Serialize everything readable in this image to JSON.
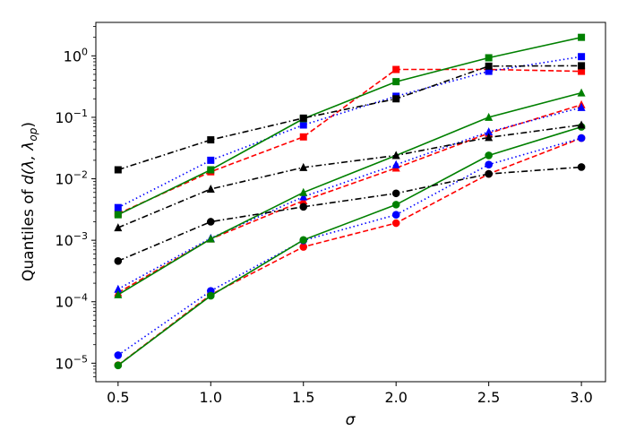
{
  "chart_data": {
    "type": "line",
    "xlabel": "σ",
    "ylabel_prefix": "Quantiles of ",
    "ylabel_math": "d(λ, λ",
    "ylabel_sub": "op",
    "ylabel_close": ")",
    "yscale": "log",
    "xlim": [
      0.38,
      3.13
    ],
    "ylim": [
      5e-06,
      3.5
    ],
    "x": [
      0.5,
      1.0,
      1.5,
      2.0,
      2.5,
      3.0
    ],
    "x_tick_labels": [
      "0.5",
      "1.0",
      "1.5",
      "2.0",
      "2.5",
      "3.0"
    ],
    "y_ticks": [
      {
        "value": 1e-05,
        "base": "10",
        "exp": "−5"
      },
      {
        "value": 0.0001,
        "base": "10",
        "exp": "−4"
      },
      {
        "value": 0.001,
        "base": "10",
        "exp": "−3"
      },
      {
        "value": 0.01,
        "base": "10",
        "exp": "−2"
      },
      {
        "value": 0.1,
        "base": "10",
        "exp": "−1"
      },
      {
        "value": 1,
        "base": "10",
        "exp": "0"
      }
    ],
    "grid": false,
    "legend": "none",
    "series": [
      {
        "color": "#ff0000",
        "dash": "dashed",
        "marker": "square",
        "values": [
          0.0027,
          0.013,
          0.048,
          0.6,
          0.6,
          0.56
        ]
      },
      {
        "color": "#ff0000",
        "dash": "dashed",
        "marker": "triangle",
        "values": [
          0.00014,
          0.00105,
          0.0044,
          0.015,
          0.055,
          0.16
        ]
      },
      {
        "color": "#ff0000",
        "dash": "dashed",
        "marker": "circle",
        "values": [
          9.3e-06,
          0.00013,
          0.00078,
          0.0019,
          0.012,
          0.046
        ]
      },
      {
        "color": "#0000ff",
        "dash": "dotted",
        "marker": "square",
        "values": [
          0.0034,
          0.02,
          0.075,
          0.22,
          0.56,
          0.97
        ]
      },
      {
        "color": "#0000ff",
        "dash": "dotted",
        "marker": "triangle",
        "values": [
          0.00016,
          0.00108,
          0.0051,
          0.017,
          0.058,
          0.145
        ]
      },
      {
        "color": "#0000ff",
        "dash": "dotted",
        "marker": "circle",
        "values": [
          1.35e-05,
          0.00015,
          0.00099,
          0.0026,
          0.017,
          0.046
        ]
      },
      {
        "color": "#008000",
        "dash": "solid",
        "marker": "square",
        "values": [
          0.0026,
          0.014,
          0.095,
          0.38,
          0.93,
          2.0
        ]
      },
      {
        "color": "#008000",
        "dash": "solid",
        "marker": "triangle",
        "values": [
          0.00013,
          0.00105,
          0.006,
          0.024,
          0.1,
          0.25
        ]
      },
      {
        "color": "#008000",
        "dash": "solid",
        "marker": "circle",
        "values": [
          9.2e-06,
          0.000125,
          0.00101,
          0.0038,
          0.024,
          0.07
        ]
      },
      {
        "color": "#000000",
        "dash": "dashdot",
        "marker": "square",
        "values": [
          0.014,
          0.043,
          0.097,
          0.2,
          0.68,
          0.69
        ]
      },
      {
        "color": "#000000",
        "dash": "dashdot",
        "marker": "triangle",
        "values": [
          0.0016,
          0.0068,
          0.0153,
          0.024,
          0.047,
          0.075
        ]
      },
      {
        "color": "#000000",
        "dash": "dashdot",
        "marker": "circle",
        "values": [
          0.00046,
          0.002,
          0.0035,
          0.0058,
          0.012,
          0.0155
        ]
      }
    ]
  }
}
